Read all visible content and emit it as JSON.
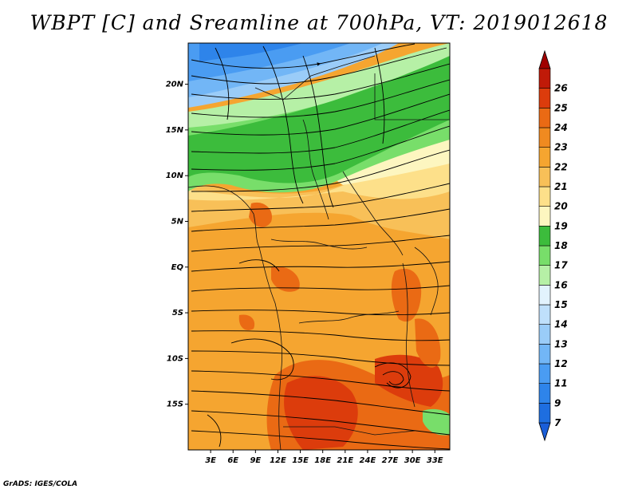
{
  "title": "WBPT [C] and Sreamline at 700hPa, VT: 2019012618",
  "footer": "GrADS: IGES/COLA",
  "map": {
    "lon_range": [
      0,
      35
    ],
    "lat_range": [
      -20,
      24.5
    ],
    "lat_ticks": [
      {
        "value": 20,
        "label": "20N"
      },
      {
        "value": 15,
        "label": "15N"
      },
      {
        "value": 10,
        "label": "10N"
      },
      {
        "value": 5,
        "label": "5N"
      },
      {
        "value": 0,
        "label": "EQ"
      },
      {
        "value": -5,
        "label": "5S"
      },
      {
        "value": -10,
        "label": "10S"
      },
      {
        "value": -15,
        "label": "15S"
      }
    ],
    "lon_ticks": [
      {
        "value": 3,
        "label": "3E"
      },
      {
        "value": 6,
        "label": "6E"
      },
      {
        "value": 9,
        "label": "9E"
      },
      {
        "value": 12,
        "label": "12E"
      },
      {
        "value": 15,
        "label": "15E"
      },
      {
        "value": 18,
        "label": "18E"
      },
      {
        "value": 21,
        "label": "21E"
      },
      {
        "value": 24,
        "label": "24E"
      },
      {
        "value": 27,
        "label": "27E"
      },
      {
        "value": 30,
        "label": "30E"
      },
      {
        "value": 33,
        "label": "33E"
      }
    ]
  },
  "colorbar": {
    "levels": [
      {
        "label": "7",
        "color": "#1e6ee0"
      },
      {
        "label": "9",
        "color": "#2e84ea"
      },
      {
        "label": "11",
        "color": "#4a9cf2"
      },
      {
        "label": "12",
        "color": "#72b6f6"
      },
      {
        "label": "13",
        "color": "#9accf8"
      },
      {
        "label": "14",
        "color": "#bfe0fb"
      },
      {
        "label": "15",
        "color": "#e2f3fd"
      },
      {
        "label": "16",
        "color": "#b6f0a6"
      },
      {
        "label": "17",
        "color": "#78de6a"
      },
      {
        "label": "18",
        "color": "#3cbc3c"
      },
      {
        "label": "19",
        "color": "#fdf6c0"
      },
      {
        "label": "20",
        "color": "#fde08a"
      },
      {
        "label": "21",
        "color": "#f8c058"
      },
      {
        "label": "22",
        "color": "#f5a530"
      },
      {
        "label": "23",
        "color": "#f08a20"
      },
      {
        "label": "24",
        "color": "#ea6a14"
      },
      {
        "label": "25",
        "color": "#dc3c0c"
      },
      {
        "label": "26",
        "color": "#c01a08"
      }
    ],
    "under_color": "#1a5ed8",
    "over_color": "#a00000"
  }
}
